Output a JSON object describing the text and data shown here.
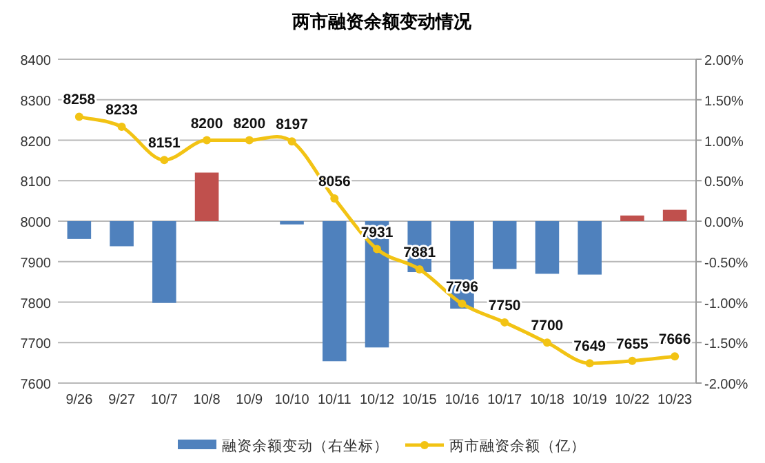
{
  "chart_data": {
    "type": "bar",
    "title": "两市融资余额变动情况",
    "categories": [
      "9/26",
      "9/27",
      "10/7",
      "10/8",
      "10/9",
      "10/10",
      "10/11",
      "10/12",
      "10/15",
      "10/16",
      "10/17",
      "10/18",
      "10/19",
      "10/22",
      "10/23"
    ],
    "series": [
      {
        "name": "融资余额变动（右坐标）",
        "axis": "y2",
        "color": "#4f81bd",
        "colors": [
          "#4f81bd",
          "#4f81bd",
          "#4f81bd",
          "#c0504d",
          "#4f81bd",
          "#4f81bd",
          "#4f81bd",
          "#4f81bd",
          "#4f81bd",
          "#4f81bd",
          "#4f81bd",
          "#4f81bd",
          "#4f81bd",
          "#c0504d",
          "#c0504d"
        ],
        "values": [
          -0.22,
          -0.31,
          -1.01,
          0.6,
          0,
          -0.04,
          -1.73,
          -1.56,
          -0.63,
          -1.08,
          -0.59,
          -0.65,
          -0.66,
          0.07,
          0.14
        ]
      },
      {
        "name": "两市融资余额（亿）",
        "type": "line",
        "color": "#f2c314",
        "marker": "circle",
        "values": [
          8258,
          8233,
          8151,
          8200,
          8200,
          8197,
          8056,
          7931,
          7881,
          7796,
          7750,
          7700,
          7649,
          7655,
          7666
        ],
        "value_labels": [
          "8258",
          "8233",
          "8151",
          "8200",
          "8200",
          "8197",
          "8056",
          "7931",
          "7881",
          "7796",
          "7750",
          "7700",
          "7649",
          "7655",
          "7666"
        ]
      }
    ],
    "ylim": [
      7600,
      8400
    ],
    "yticks": [
      7600,
      7700,
      7800,
      7900,
      8000,
      8100,
      8200,
      8300,
      8400
    ],
    "y2lim": [
      -2,
      2
    ],
    "y2ticks": [
      {
        "value": -2,
        "label": "-2.00%"
      },
      {
        "value": -1.5,
        "label": "-1.50%"
      },
      {
        "value": -1,
        "label": "-1.00%"
      },
      {
        "value": -0.5,
        "label": "-0.50%"
      },
      {
        "value": 0,
        "label": "0.00%"
      },
      {
        "value": 0.5,
        "label": "0.50%"
      },
      {
        "value": 1,
        "label": "1.00%"
      },
      {
        "value": 1.5,
        "label": "1.50%"
      },
      {
        "value": 2,
        "label": "2.00%"
      }
    ],
    "grid": "y",
    "legend": "bottom"
  }
}
